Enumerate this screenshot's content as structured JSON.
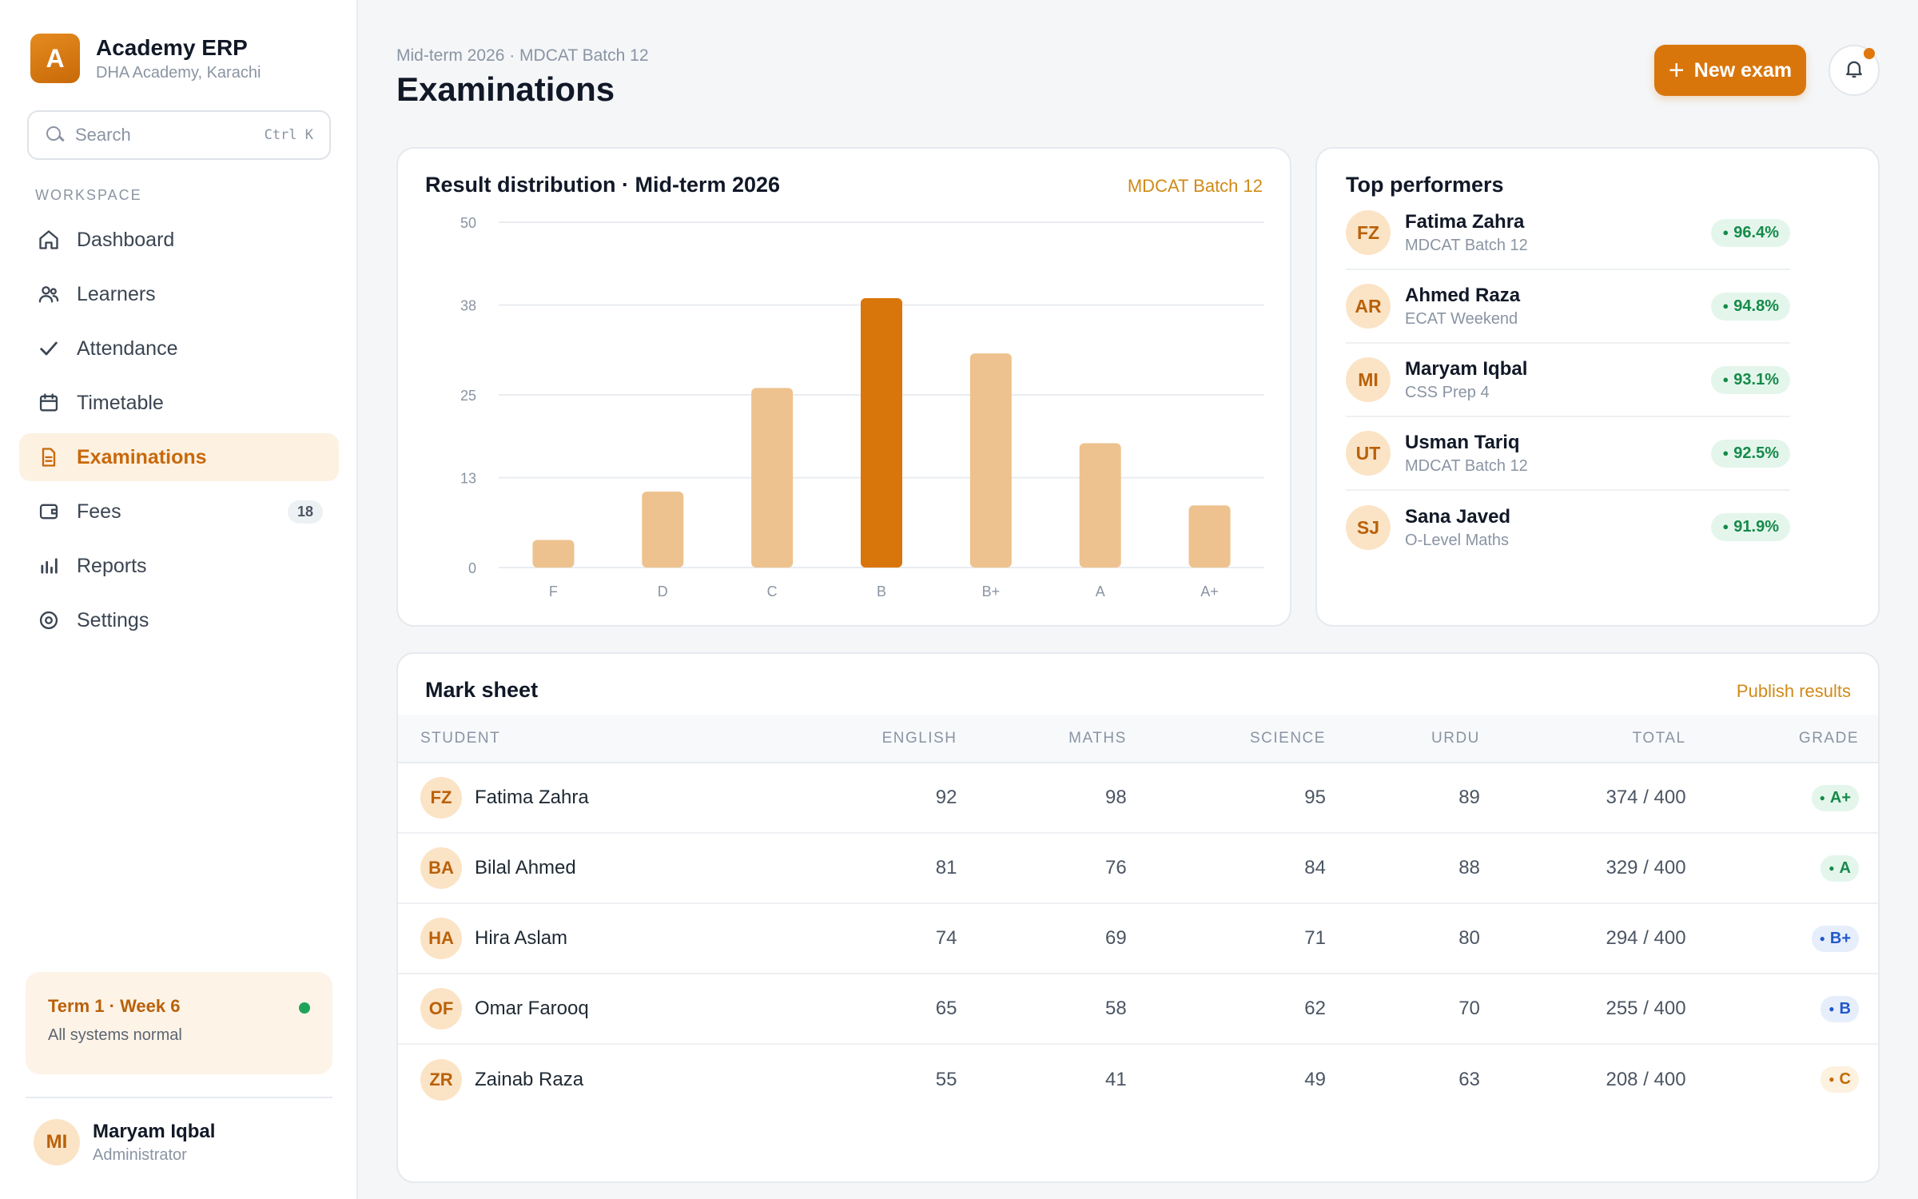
{
  "brand": {
    "logo_letter": "A",
    "name": "Academy ERP",
    "subtitle": "DHA Academy, Karachi"
  },
  "search": {
    "placeholder": "Search",
    "shortcut": "Ctrl K"
  },
  "sidebar": {
    "section_label": "WORKSPACE",
    "items": [
      {
        "label": "Dashboard",
        "icon": "home-icon"
      },
      {
        "label": "Learners",
        "icon": "users-icon"
      },
      {
        "label": "Attendance",
        "icon": "check-icon"
      },
      {
        "label": "Timetable",
        "icon": "calendar-icon"
      },
      {
        "label": "Examinations",
        "icon": "document-icon",
        "active": true
      },
      {
        "label": "Fees",
        "icon": "wallet-icon",
        "badge": "18"
      },
      {
        "label": "Reports",
        "icon": "bar-chart-icon"
      },
      {
        "label": "Settings",
        "icon": "gear-icon"
      }
    ],
    "status": {
      "title": "Term 1 · Week 6",
      "subtitle": "All systems normal"
    },
    "user": {
      "initials": "MI",
      "name": "Maryam Iqbal",
      "role": "Administrator"
    }
  },
  "header": {
    "breadcrumb": "Mid-term 2026 · MDCAT Batch 12",
    "title": "Examinations",
    "new_button": "New exam"
  },
  "colors": {
    "accent": "#d9760b",
    "bar_light": "#eec28e",
    "bar_highlight": "#d9760b",
    "success": "#168a4a"
  },
  "chart_card": {
    "title": "Result distribution · Mid-term 2026",
    "tag": "MDCAT Batch 12"
  },
  "chart_data": {
    "type": "bar",
    "title": "Result distribution · Mid-term 2026",
    "categories": [
      "F",
      "D",
      "C",
      "B",
      "B+",
      "A",
      "A+"
    ],
    "values": [
      4,
      11,
      26,
      39,
      31,
      18,
      9
    ],
    "highlight": "B",
    "yticks": [
      0,
      13,
      25,
      38,
      50
    ],
    "ylim": [
      0,
      50
    ],
    "grid": true
  },
  "top_performers": {
    "title": "Top performers",
    "items": [
      {
        "initials": "FZ",
        "name": "Fatima Zahra",
        "batch": "MDCAT Batch 12",
        "score": "96.4%"
      },
      {
        "initials": "AR",
        "name": "Ahmed Raza",
        "batch": "ECAT Weekend",
        "score": "94.8%"
      },
      {
        "initials": "MI",
        "name": "Maryam Iqbal",
        "batch": "CSS Prep 4",
        "score": "93.1%"
      },
      {
        "initials": "UT",
        "name": "Usman Tariq",
        "batch": "MDCAT Batch 12",
        "score": "92.5%"
      },
      {
        "initials": "SJ",
        "name": "Sana Javed",
        "batch": "O-Level Maths",
        "score": "91.9%"
      }
    ]
  },
  "mark_sheet": {
    "title": "Mark sheet",
    "publish_label": "Publish results",
    "columns": [
      "STUDENT",
      "ENGLISH",
      "MATHS",
      "SCIENCE",
      "URDU",
      "TOTAL",
      "GRADE"
    ],
    "rows": [
      {
        "initials": "FZ",
        "name": "Fatima Zahra",
        "english": "92",
        "maths": "98",
        "science": "95",
        "urdu": "89",
        "total": "374 / 400",
        "grade": "A+",
        "grade_color": "green"
      },
      {
        "initials": "BA",
        "name": "Bilal Ahmed",
        "english": "81",
        "maths": "76",
        "science": "84",
        "urdu": "88",
        "total": "329 / 400",
        "grade": "A",
        "grade_color": "green"
      },
      {
        "initials": "HA",
        "name": "Hira Aslam",
        "english": "74",
        "maths": "69",
        "science": "71",
        "urdu": "80",
        "total": "294 / 400",
        "grade": "B+",
        "grade_color": "blue"
      },
      {
        "initials": "OF",
        "name": "Omar Farooq",
        "english": "65",
        "maths": "58",
        "science": "62",
        "urdu": "70",
        "total": "255 / 400",
        "grade": "B",
        "grade_color": "blue"
      },
      {
        "initials": "ZR",
        "name": "Zainab Raza",
        "english": "55",
        "maths": "41",
        "science": "49",
        "urdu": "63",
        "total": "208 / 400",
        "grade": "C",
        "grade_color": "amber"
      }
    ]
  }
}
